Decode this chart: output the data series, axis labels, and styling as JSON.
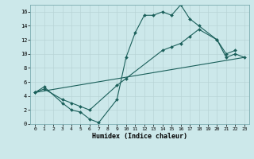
{
  "xlabel": "Humidex (Indice chaleur)",
  "bg_color": "#cce8ea",
  "grid_color": "#b8d4d6",
  "line_color": "#1a5f5a",
  "xlim": [
    -0.5,
    23.5
  ],
  "ylim": [
    0,
    17
  ],
  "xticks": [
    0,
    1,
    2,
    3,
    4,
    5,
    6,
    7,
    8,
    9,
    10,
    11,
    12,
    13,
    14,
    15,
    16,
    17,
    18,
    19,
    20,
    21,
    22,
    23
  ],
  "yticks": [
    0,
    2,
    4,
    6,
    8,
    10,
    12,
    14,
    16
  ],
  "series": [
    {
      "x": [
        0,
        1,
        3,
        4,
        5,
        6,
        7,
        9,
        10,
        11,
        12,
        13,
        14,
        15,
        16,
        17,
        18,
        20,
        21,
        22
      ],
      "y": [
        4.5,
        5.3,
        3.0,
        2.0,
        1.7,
        0.7,
        0.2,
        3.5,
        9.5,
        13.0,
        15.5,
        15.5,
        16.0,
        15.5,
        17.0,
        15.0,
        14.0,
        12.0,
        10.0,
        10.5
      ],
      "has_markers": true
    },
    {
      "x": [
        0,
        1,
        3,
        4,
        5,
        6,
        9,
        10,
        14,
        15,
        16,
        17,
        18,
        20,
        21,
        22,
        23
      ],
      "y": [
        4.5,
        5.0,
        3.5,
        3.0,
        2.5,
        2.0,
        5.5,
        6.5,
        10.5,
        11.0,
        11.5,
        12.5,
        13.5,
        12.0,
        9.5,
        10.0,
        9.5
      ],
      "has_markers": true
    },
    {
      "x": [
        0,
        23
      ],
      "y": [
        4.5,
        9.5
      ],
      "has_markers": false
    }
  ]
}
